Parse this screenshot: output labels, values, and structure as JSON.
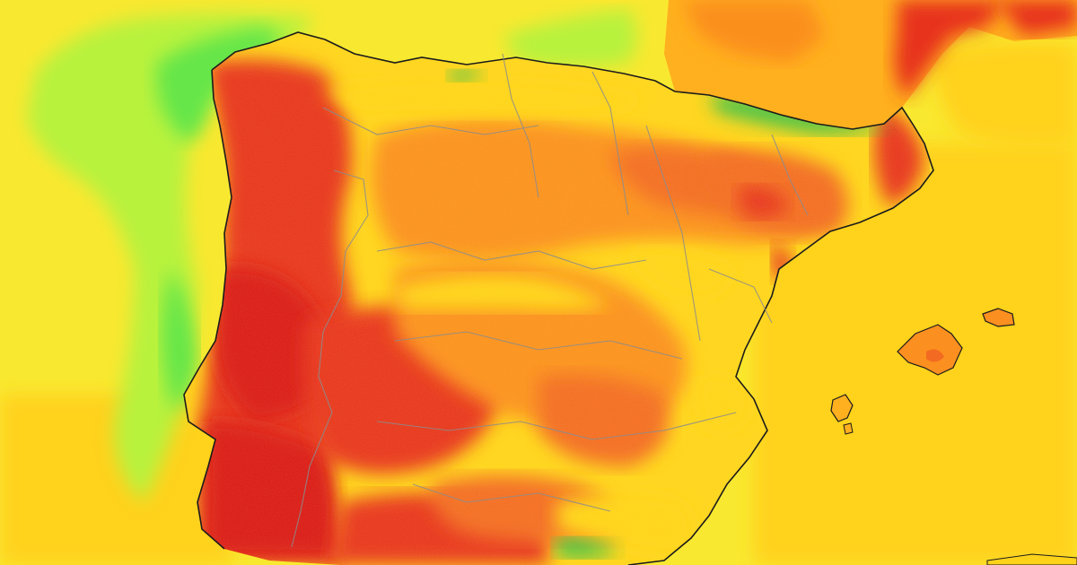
{
  "map": {
    "palette": {
      "sea_base": "#f9e830",
      "sea_warm": "#ffd21a",
      "sea_green": "#66e64a",
      "sea_light_green": "#b8f23c",
      "land_yellow": "#ffd419",
      "land_light_orange": "#ffb01e",
      "land_orange": "#fb8f1f",
      "land_dark_orange": "#f36a22",
      "land_red": "#e7321e",
      "land_deep_red": "#d91818",
      "mountain_green": "#2fbf4a",
      "coastline": "#1b1b1b",
      "border": "#8c8c8c"
    },
    "regions": [
      {
        "name": "iberian-peninsula"
      },
      {
        "name": "balearic-islands"
      },
      {
        "name": "southern-france"
      }
    ]
  }
}
